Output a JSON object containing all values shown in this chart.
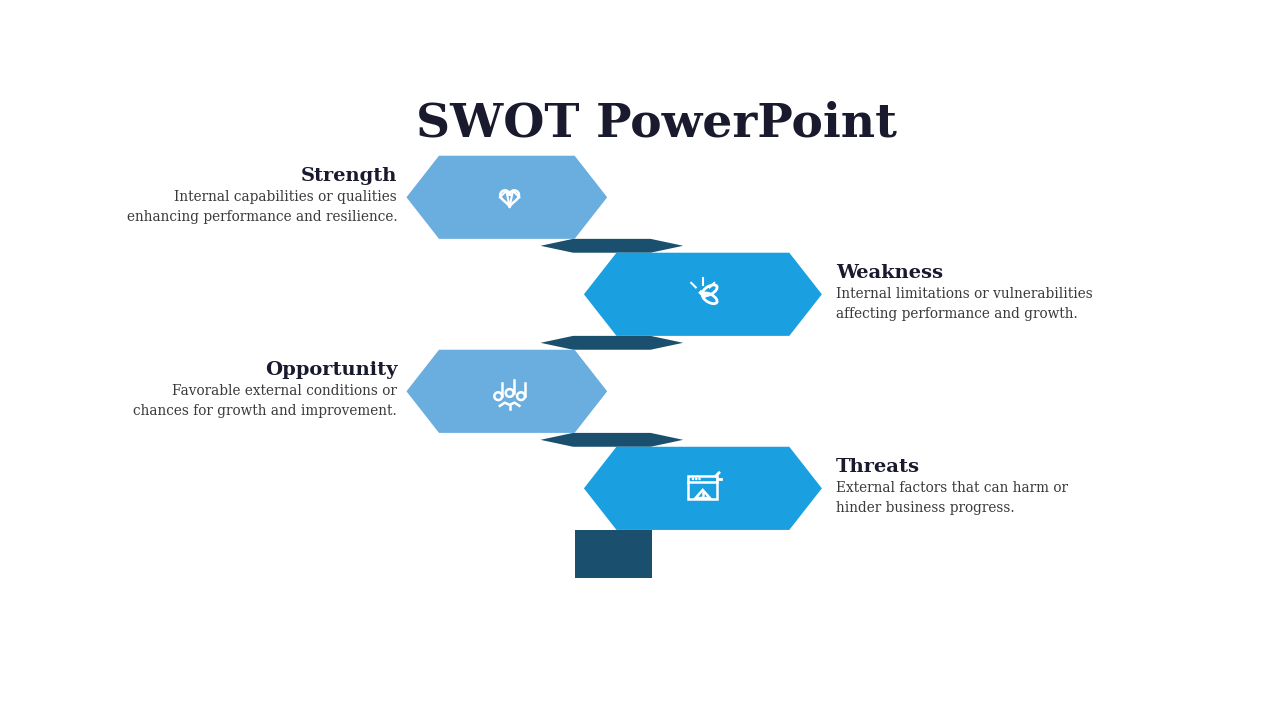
{
  "title": "SWOT PowerPoint",
  "title_fontsize": 34,
  "title_fontweight": "bold",
  "background_color": "#ffffff",
  "col_left": "#6aaee0",
  "col_right": "#1a9fe0",
  "col_dark": "#1a4f6e",
  "text_color_label": "#1a1a2e",
  "text_color_desc": "#3a3a3a",
  "items": [
    {
      "label": "Strength",
      "desc_line1": "Internal capabilities or qualities",
      "desc_line2": "enhancing performance and resilience.",
      "side": "left",
      "icon": "strength"
    },
    {
      "label": "Weakness",
      "desc_line1": "Internal limitations or vulnerabilities",
      "desc_line2": "affecting performance and growth.",
      "side": "right",
      "icon": "weakness"
    },
    {
      "label": "Opportunity",
      "desc_line1": "Favorable external conditions or",
      "desc_line2": "chances for growth and improvement.",
      "side": "left",
      "icon": "opportunity"
    },
    {
      "label": "Threats",
      "desc_line1": "External factors that can harm or",
      "desc_line2": "hinder business progress.",
      "side": "right",
      "icon": "threats"
    }
  ]
}
